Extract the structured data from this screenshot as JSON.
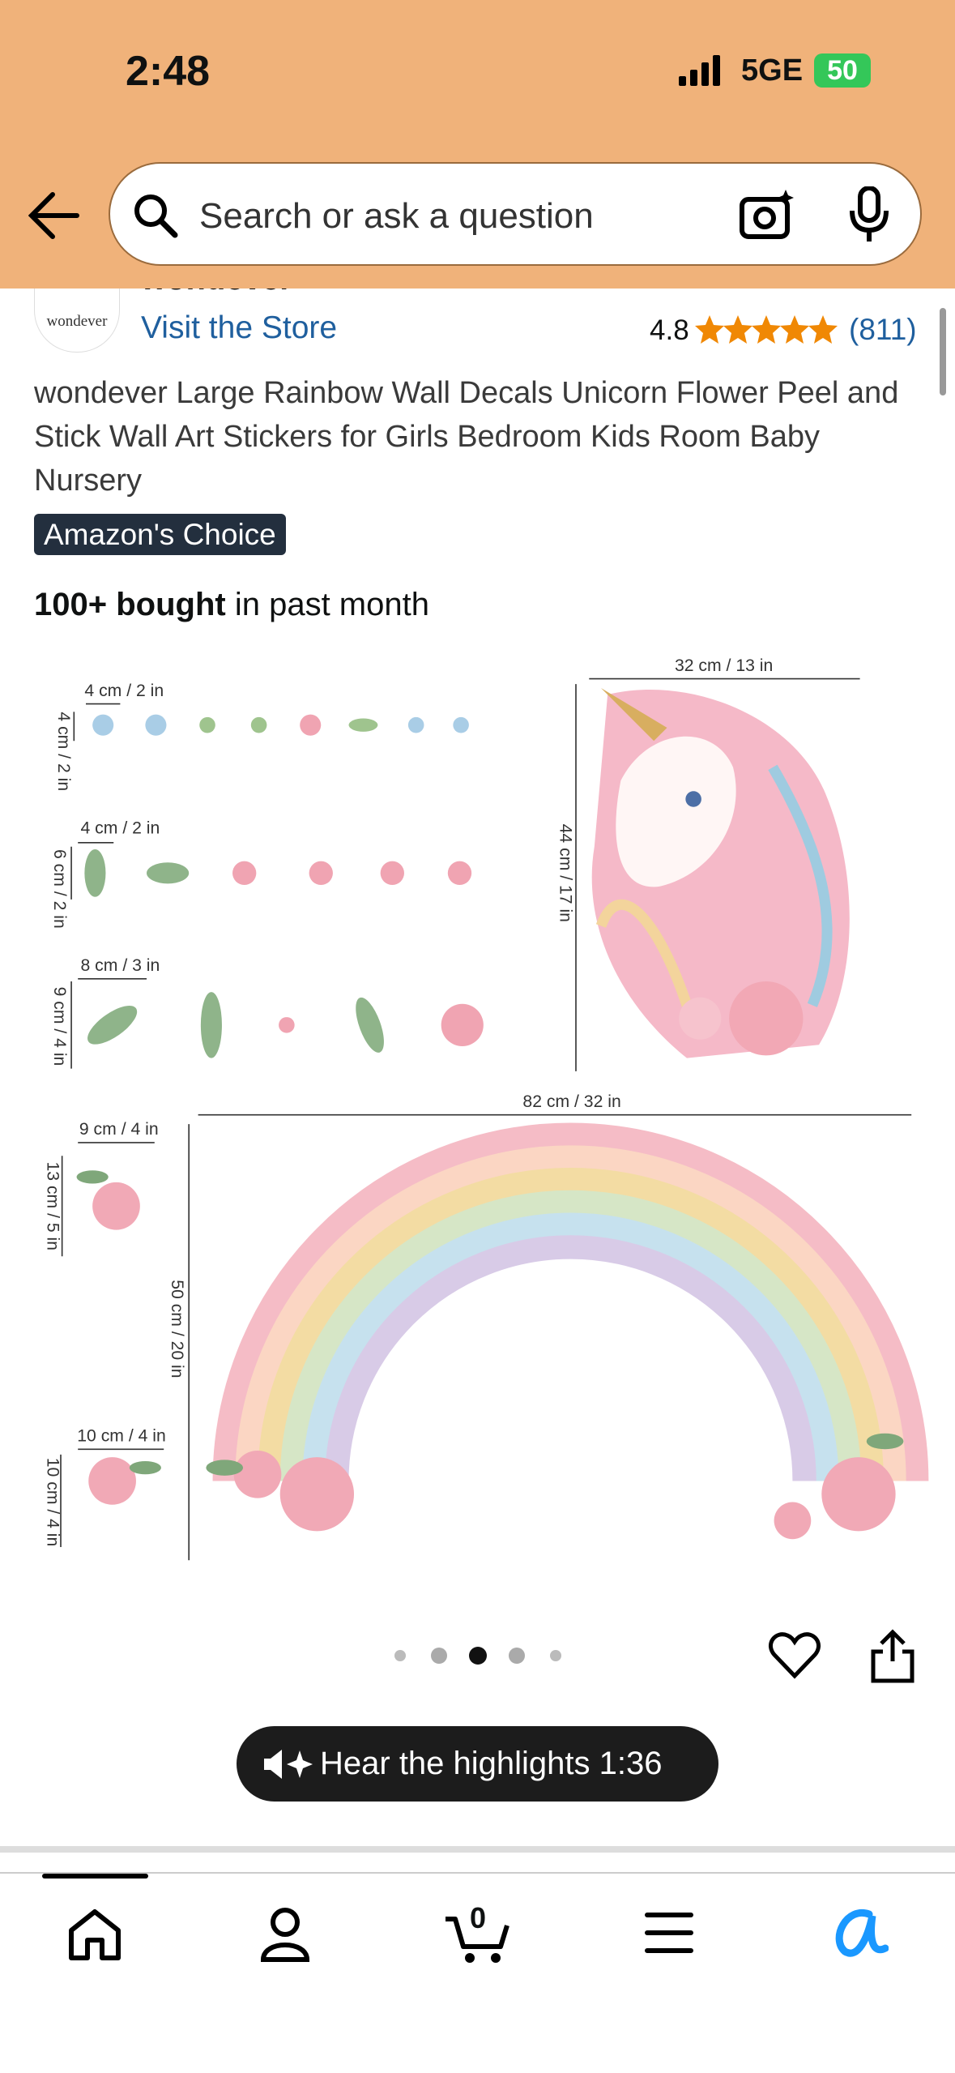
{
  "status": {
    "time": "2:48",
    "network": "5GE",
    "battery": "50"
  },
  "search": {
    "placeholder": "Search or ask a question"
  },
  "store": {
    "logo_text": "wondever",
    "brand": "wondever",
    "link": "Visit the Store",
    "rating": "4.8",
    "review_count": "(811)"
  },
  "product": {
    "title": "wondever Large Rainbow Wall Decals Unicorn Flower Peel and Stick Wall Art Stickers for Girls Bedroom Kids Room Baby Nursery",
    "badge": "Amazon's Choice",
    "bought_bold": "100+ bought",
    "bought_rest": "in past month"
  },
  "image": {
    "labels": [
      "4 cm / 2 in",
      "4 cm / 2 in",
      "8 cm / 3 in",
      "32 cm / 13 in",
      "82 cm / 32 in",
      "9 cm / 4 in",
      "10 cm / 4 in",
      "4 cm / 2 in",
      "6 cm / 2 in",
      "9 cm / 4 in",
      "44 cm / 17 in",
      "13 cm / 5 in",
      "50 cm / 20 in",
      "10 cm / 4 in"
    ]
  },
  "audio": {
    "label": "Hear the highlights 1:36"
  },
  "nav": {
    "cart_count": "0"
  }
}
